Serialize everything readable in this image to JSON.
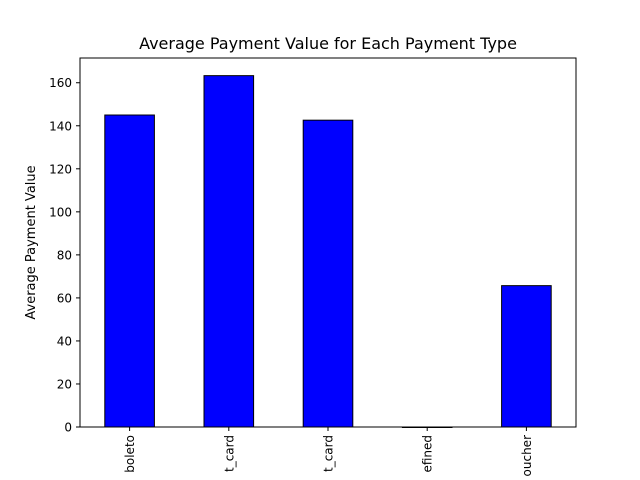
{
  "chart_data": {
    "type": "bar",
    "title": "Average Payment Value for Each Payment Type",
    "xlabel": "",
    "ylabel": "Average Payment Value",
    "categories": [
      "boleto",
      "credit_card",
      "debit_card",
      "not_defined",
      "voucher"
    ],
    "tick_labels": [
      "boleto",
      "t_card",
      "t_card",
      "efined",
      "oucher"
    ],
    "values": [
      145,
      163.3,
      142.6,
      0,
      65.7
    ],
    "ylim": [
      0,
      171.5
    ],
    "yticks": [
      0,
      20,
      40,
      60,
      80,
      100,
      120,
      140,
      160
    ],
    "bar_color": "#0000ff",
    "edge_color": "#000000",
    "grid": false,
    "legend": "none"
  }
}
